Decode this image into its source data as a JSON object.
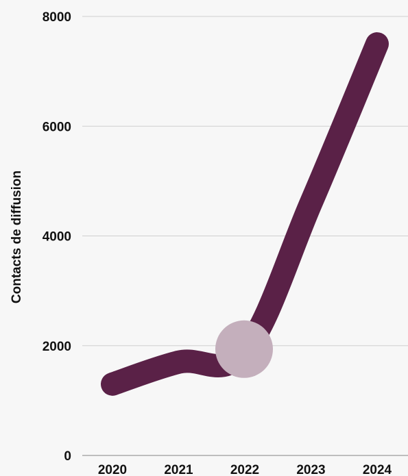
{
  "chart_data": {
    "type": "line",
    "title": "",
    "xlabel": "",
    "ylabel": "Contacts de diffusion",
    "x": [
      "2020",
      "2021",
      "2022",
      "2023",
      "2024"
    ],
    "series": [
      {
        "values": [
          1300,
          1700,
          1900,
          4600,
          7500
        ]
      }
    ],
    "highlight": {
      "x": "2022",
      "value": 1900
    },
    "ylim": [
      0,
      8000
    ],
    "yticks": [
      0,
      2000,
      4000,
      6000,
      8000
    ],
    "grid": true,
    "legend": "none",
    "colors": {
      "line": "#5a2147",
      "highlight": "#c4afbc",
      "grid": "#cfcfcf",
      "text": "#111111",
      "background": "#f7f7f7"
    }
  }
}
